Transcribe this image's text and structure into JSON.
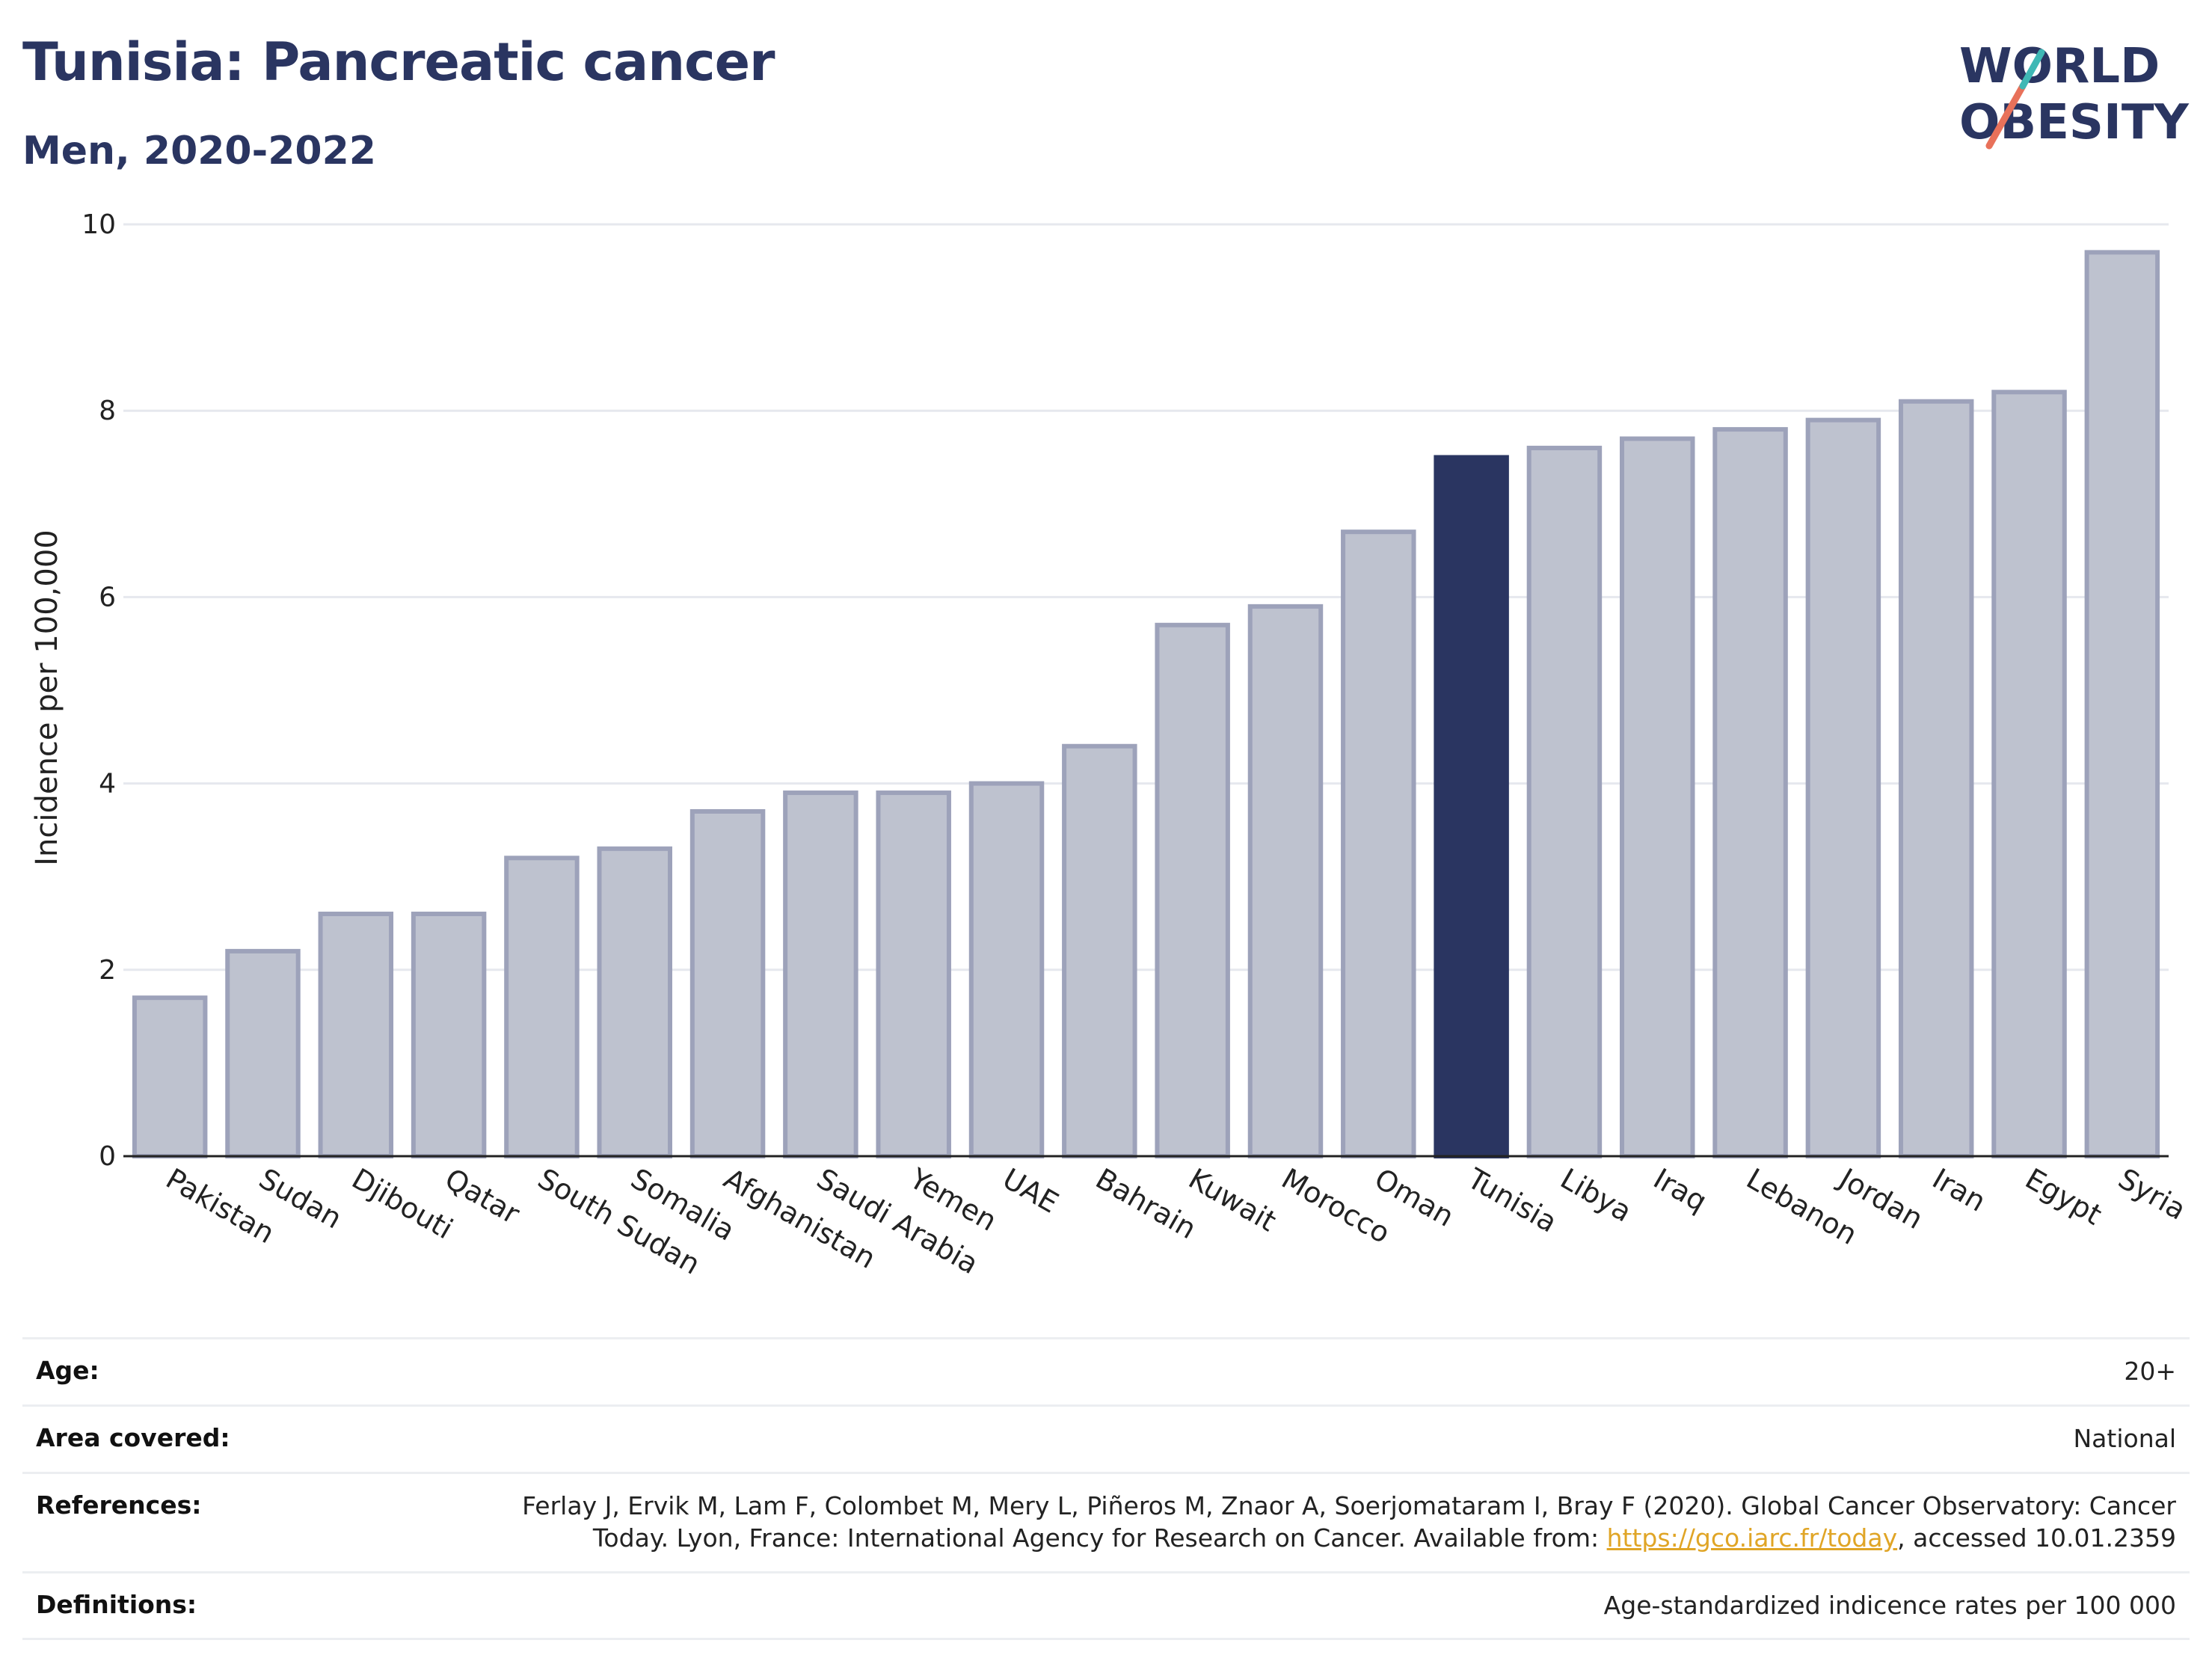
{
  "header": {
    "title": "Tunisia: Pancreatic cancer",
    "subtitle": "Men, 2020-2022"
  },
  "logo": {
    "line1": "WORLD",
    "line2": "OBESITY"
  },
  "colors": {
    "highlight": "#2a3561",
    "bar_fill": "#bec2cf",
    "bar_stroke": "#9da2ba",
    "grid": "#e6e8ee",
    "logo_text": "#2a3561",
    "logo_teal": "#3fb8b5",
    "logo_coral": "#e8715a"
  },
  "chart_data": {
    "type": "bar",
    "categories": [
      "Pakistan",
      "Sudan",
      "Djibouti",
      "Qatar",
      "South Sudan",
      "Somalia",
      "Afghanistan",
      "Saudi Arabia",
      "Yemen",
      "UAE",
      "Bahrain",
      "Kuwait",
      "Morocco",
      "Oman",
      "Tunisia",
      "Libya",
      "Iraq",
      "Lebanon",
      "Jordan",
      "Iran",
      "Egypt",
      "Syria"
    ],
    "values": [
      1.7,
      2.2,
      2.6,
      2.6,
      3.2,
      3.3,
      3.7,
      3.9,
      3.9,
      4.0,
      4.4,
      5.7,
      5.9,
      6.7,
      7.5,
      7.6,
      7.7,
      7.8,
      7.9,
      8.1,
      8.2,
      9.7
    ],
    "highlight": "Tunisia",
    "ylabel": "Incidence per 100,000",
    "ylim": [
      0,
      10
    ],
    "yticks": [
      0,
      2,
      4,
      6,
      8,
      10
    ],
    "grid": true
  },
  "meta": {
    "age": {
      "label": "Age:",
      "value": "20+"
    },
    "area": {
      "label": "Area covered:",
      "value": "National"
    },
    "references": {
      "label": "References:",
      "text1": "Ferlay J, Ervik M, Lam F, Colombet M, Mery L, Piñeros M, Znaor A, Soerjomataram I, Bray F (2020). Global Cancer Observatory: Cancer Today. Lyon, France: International Agency for Research on Cancer. Available from: ",
      "link": "https://gco.iarc.fr/today",
      "text2": ", accessed 10.01.2359"
    },
    "definitions": {
      "label": "Definitions:",
      "value": "Age-standardized indicence rates per 100 000"
    }
  }
}
